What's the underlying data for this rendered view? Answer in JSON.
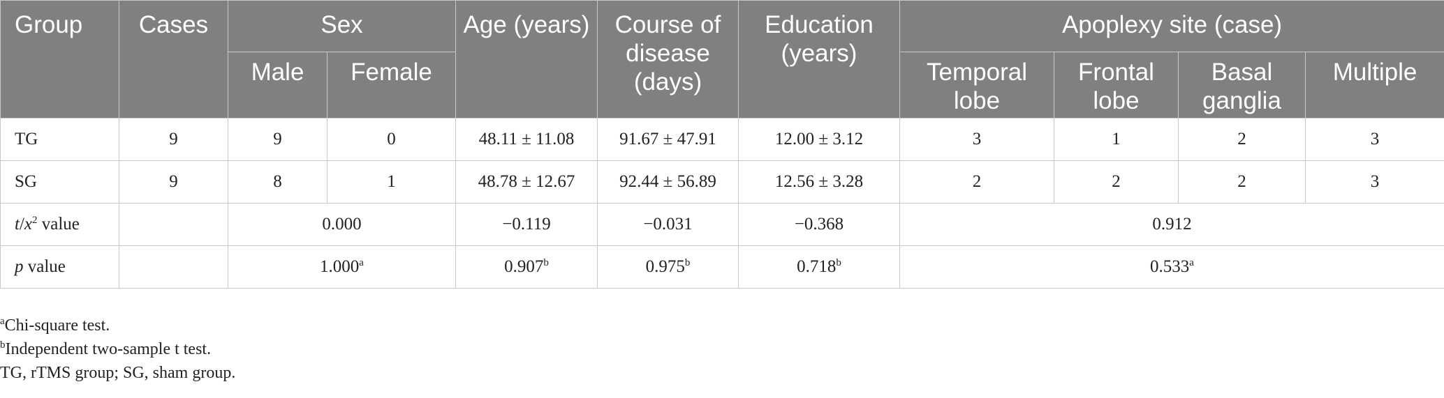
{
  "header": {
    "group": "Group",
    "cases": "Cases",
    "sex": "Sex",
    "male": "Male",
    "female": "Female",
    "age": "Age (years)",
    "course": "Course of disease (days)",
    "education": "Education (years)",
    "apoplexy": "Apoplexy site (case)",
    "temporal": "Temporal lobe",
    "frontal": "Frontal lobe",
    "basal": "Basal ganglia",
    "multiple": "Multiple"
  },
  "rows": [
    {
      "group": "TG",
      "cases": "9",
      "male": "9",
      "female": "0",
      "age": "48.11 ± 11.08",
      "course": "91.67 ± 47.91",
      "education": "12.00 ± 3.12",
      "temporal": "3",
      "frontal": "1",
      "basal": "2",
      "multiple": "3"
    },
    {
      "group": "SG",
      "cases": "9",
      "male": "8",
      "female": "1",
      "age": "48.78 ± 12.67",
      "course": "92.44 ± 56.89",
      "education": "12.56 ± 3.28",
      "temporal": "2",
      "frontal": "2",
      "basal": "2",
      "multiple": "3"
    }
  ],
  "stat_row": {
    "label_var_t": "t",
    "label_sep": "/",
    "label_var_x": "x",
    "label_sup": "2",
    "label_rest": " value",
    "sex": "0.000",
    "age": "−0.119",
    "course": "−0.031",
    "education": "−0.368",
    "apoplexy": "0.912"
  },
  "p_row": {
    "label_var": "p",
    "label_rest": " value",
    "sex": "1.000",
    "sex_sup": "a",
    "age": "0.907",
    "age_sup": "b",
    "course": "0.975",
    "course_sup": "b",
    "education": "0.718",
    "education_sup": "b",
    "apoplexy": "0.533",
    "apoplexy_sup": "a"
  },
  "footnotes": [
    {
      "mark": "a",
      "text": "Chi-square test."
    },
    {
      "mark": "b",
      "text": "Independent two-sample t test."
    },
    {
      "mark": "",
      "text": "TG, rTMS group; SG, sham group."
    }
  ]
}
